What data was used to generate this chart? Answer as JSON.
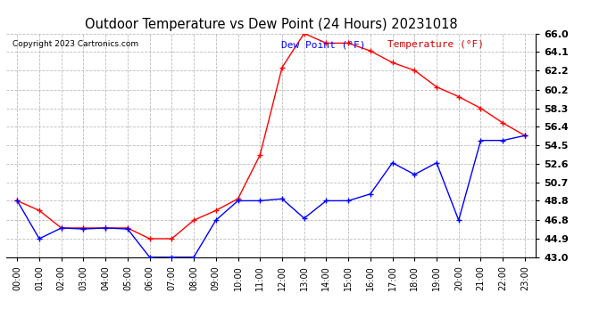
{
  "title": "Outdoor Temperature vs Dew Point (24 Hours) 20231018",
  "copyright": "Copyright 2023 Cartronics.com",
  "legend_dew": "Dew Point (°F)",
  "legend_temp": "Temperature (°F)",
  "x_labels": [
    "00:00",
    "01:00",
    "02:00",
    "03:00",
    "04:00",
    "05:00",
    "06:00",
    "07:00",
    "08:00",
    "09:00",
    "10:00",
    "11:00",
    "12:00",
    "13:00",
    "14:00",
    "15:00",
    "16:00",
    "17:00",
    "18:00",
    "19:00",
    "20:00",
    "21:00",
    "22:00",
    "23:00"
  ],
  "temperature": [
    48.8,
    44.9,
    46.0,
    45.9,
    46.0,
    45.9,
    43.0,
    43.0,
    43.0,
    46.8,
    48.8,
    48.8,
    49.0,
    47.0,
    48.8,
    48.8,
    49.5,
    52.7,
    51.5,
    52.7,
    46.8,
    55.0,
    55.0,
    55.5
  ],
  "dew_point": [
    48.8,
    47.8,
    46.0,
    46.0,
    46.0,
    46.0,
    44.9,
    44.9,
    46.8,
    47.8,
    49.0,
    53.5,
    62.5,
    66.0,
    65.0,
    65.0,
    64.2,
    63.0,
    62.2,
    60.5,
    59.5,
    58.3,
    56.8,
    55.5
  ],
  "ylim": [
    43.0,
    66.0
  ],
  "yticks": [
    43.0,
    44.9,
    46.8,
    48.8,
    50.7,
    52.6,
    54.5,
    56.4,
    58.3,
    60.2,
    62.2,
    64.1,
    66.0
  ],
  "temp_color": "blue",
  "dew_color": "red",
  "bg_color": "#ffffff",
  "grid_color": "#bbbbbb",
  "title_color": "#000000",
  "copyright_color": "#000000",
  "legend_dew_color": "#0000ff",
  "legend_temp_color": "#cc0000"
}
